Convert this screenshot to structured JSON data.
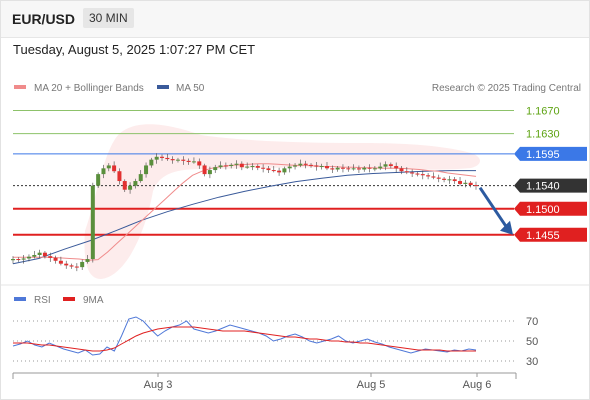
{
  "header": {
    "symbol": "EUR/USD",
    "timeframe": "30 MIN"
  },
  "timestamp": "Tuesday, August 5, 2025 1:07:27 PM CET",
  "legend": {
    "ma20": "MA 20 + Bollinger Bands",
    "ma50": "MA 50",
    "research": "Research © 2025 Trading Central",
    "rsi": "RSI",
    "rsi_ma": "9MA"
  },
  "colors": {
    "ma20": "#f08b8b",
    "ma50": "#3a5a9a",
    "resistance": "#8dc26a",
    "pivot": "#3b78e7",
    "support": "#e02020",
    "current": "#333333",
    "rsi": "#4f78d8",
    "rsi_ma": "#e02020",
    "bull": "#5a8f3c",
    "bear": "#e23030"
  },
  "chart_data": [
    {
      "type": "candlestick",
      "timeframe": "30 MIN",
      "x_ticks": [
        "Aug 3",
        "Aug 5",
        "Aug 6"
      ],
      "ylim": [
        1.1375,
        1.169
      ],
      "levels": [
        {
          "label": "1.1670",
          "value": 1.167,
          "kind": "resistance"
        },
        {
          "label": "1.1630",
          "value": 1.163,
          "kind": "resistance"
        },
        {
          "label": "1.1595",
          "value": 1.1595,
          "kind": "pivot"
        },
        {
          "label": "1.1540",
          "value": 1.154,
          "kind": "current"
        },
        {
          "label": "1.1500",
          "value": 1.15,
          "kind": "support"
        },
        {
          "label": "1.1455",
          "value": 1.1455,
          "kind": "support"
        }
      ],
      "close_series": [
        1.1413,
        1.1412,
        1.1414,
        1.1417,
        1.142,
        1.1424,
        1.1418,
        1.1415,
        1.141,
        1.1405,
        1.1402,
        1.14,
        1.1399,
        1.1408,
        1.1413,
        1.154,
        1.156,
        1.157,
        1.1575,
        1.1565,
        1.1548,
        1.1533,
        1.154,
        1.1548,
        1.156,
        1.1575,
        1.1585,
        1.159,
        1.1588,
        1.1586,
        1.1584,
        1.1585,
        1.1583,
        1.1581,
        1.1582,
        1.1575,
        1.156,
        1.1567,
        1.1572,
        1.1575,
        1.1574,
        1.1576,
        1.1578,
        1.1572,
        1.1573,
        1.1574,
        1.1571,
        1.157,
        1.1567,
        1.1566,
        1.1563,
        1.157,
        1.1573,
        1.1575,
        1.1578,
        1.1576,
        1.1575,
        1.1573,
        1.1574,
        1.157,
        1.1568,
        1.1571,
        1.157,
        1.1569,
        1.157,
        1.1568,
        1.1571,
        1.157,
        1.157,
        1.1573,
        1.1577,
        1.1574,
        1.157,
        1.1565,
        1.1563,
        1.1561,
        1.156,
        1.1558,
        1.1556,
        1.1554,
        1.1552,
        1.155,
        1.1551,
        1.1548,
        1.1543,
        1.1545,
        1.1541,
        1.154
      ],
      "ma20_series": [
        1.1416,
        1.1416,
        1.1416,
        1.1416,
        1.1416,
        1.1415,
        1.1414,
        1.1413,
        1.1411,
        1.1412,
        1.1425,
        1.144,
        1.1455,
        1.147,
        1.1485,
        1.15,
        1.1515,
        1.153,
        1.1545,
        1.1558,
        1.1565,
        1.157,
        1.1573,
        1.1575,
        1.1576,
        1.1577,
        1.1578,
        1.1578,
        1.1577,
        1.1576,
        1.1575,
        1.1575,
        1.1574,
        1.1573,
        1.1573,
        1.1572,
        1.1572,
        1.1571,
        1.1571,
        1.157,
        1.157,
        1.157,
        1.1569,
        1.1568,
        1.1566,
        1.1565,
        1.1562,
        1.156,
        1.1558,
        1.1556
      ],
      "ma50_series": [
        1.1405,
        1.1414,
        1.143,
        1.1445,
        1.1462,
        1.148,
        1.1495,
        1.1508,
        1.152,
        1.153,
        1.1539,
        1.1547,
        1.1553,
        1.1558,
        1.1561,
        1.1563,
        1.1565,
        1.1566,
        1.1566
      ]
    },
    {
      "type": "line",
      "name": "RSI",
      "y_ticks": [
        70,
        50,
        30
      ],
      "ylim": [
        20,
        80
      ],
      "series": [
        {
          "name": "RSI",
          "values": [
            45,
            47,
            50,
            46,
            44,
            48,
            45,
            42,
            40,
            38,
            41,
            36,
            37,
            44,
            40,
            55,
            72,
            74,
            70,
            62,
            55,
            60,
            64,
            66,
            70,
            62,
            60,
            58,
            60,
            63,
            66,
            64,
            62,
            60,
            58,
            55,
            50,
            52,
            55,
            57,
            54,
            50,
            48,
            50,
            52,
            55,
            50,
            48,
            50,
            52,
            49,
            47,
            44,
            42,
            40,
            38,
            40,
            42,
            41,
            40,
            39,
            41,
            40,
            42,
            41
          ]
        },
        {
          "name": "9MA",
          "values": [
            48,
            48,
            48,
            47,
            46,
            46,
            45,
            44,
            43,
            42,
            41,
            40,
            40,
            41,
            43,
            47,
            51,
            55,
            58,
            60,
            62,
            63,
            64,
            64,
            64,
            64,
            63,
            62,
            61,
            60,
            60,
            60,
            60,
            59,
            58,
            57,
            56,
            55,
            54,
            54,
            53,
            52,
            52,
            51,
            50,
            50,
            49,
            49,
            48,
            48,
            47,
            46,
            45,
            44,
            43,
            42,
            41,
            41,
            41,
            41,
            40,
            40,
            40,
            40,
            40
          ]
        }
      ]
    }
  ]
}
